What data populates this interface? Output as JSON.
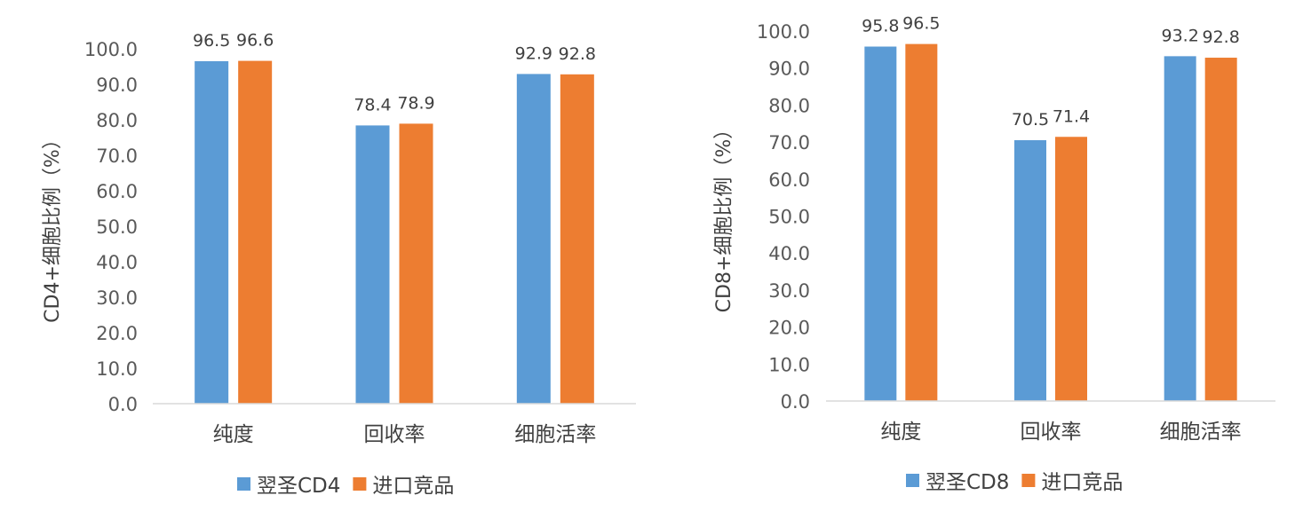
{
  "colors": {
    "series1": "#5b9bd5",
    "series2": "#ed7d31",
    "axis": "#d9d9d9"
  },
  "chart_data": [
    {
      "type": "bar",
      "title": "",
      "xlabel": "",
      "ylabel": "CD4+细胞比例（%）",
      "ylim": [
        0,
        100
      ],
      "yticks": [
        "0.0",
        "10.0",
        "20.0",
        "30.0",
        "40.0",
        "50.0",
        "60.0",
        "70.0",
        "80.0",
        "90.0",
        "100.0"
      ],
      "categories": [
        "纯度",
        "回收率",
        "细胞活率"
      ],
      "series": [
        {
          "name": "翌圣CD4",
          "values": [
            96.5,
            78.4,
            92.9
          ],
          "labels": [
            "96.5",
            "78.4",
            "92.9"
          ]
        },
        {
          "name": "进口竞品",
          "values": [
            96.6,
            78.9,
            92.8
          ],
          "labels": [
            "96.6",
            "78.9",
            "92.8"
          ]
        }
      ],
      "legend": "bottom"
    },
    {
      "type": "bar",
      "title": "",
      "xlabel": "",
      "ylabel": "CD8+细胞比例（%）",
      "ylim": [
        0,
        100
      ],
      "yticks": [
        "0.0",
        "10.0",
        "20.0",
        "30.0",
        "40.0",
        "50.0",
        "60.0",
        "70.0",
        "80.0",
        "90.0",
        "100.0"
      ],
      "categories": [
        "纯度",
        "回收率",
        "细胞活率"
      ],
      "series": [
        {
          "name": "翌圣CD8",
          "values": [
            95.8,
            70.5,
            93.2
          ],
          "labels": [
            "95.8",
            "70.5",
            "93.2"
          ]
        },
        {
          "name": "进口竞品",
          "values": [
            96.5,
            71.4,
            92.8
          ],
          "labels": [
            "96.5",
            "71.4",
            "92.8"
          ]
        }
      ],
      "legend": "bottom"
    }
  ]
}
